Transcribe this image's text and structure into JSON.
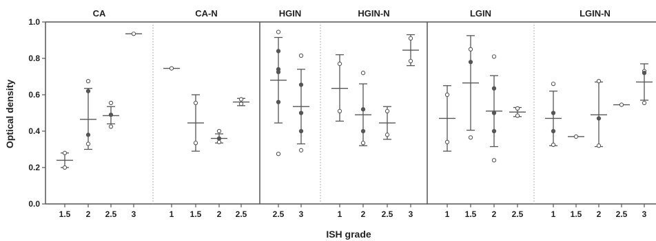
{
  "chart_data": {
    "type": "scatter",
    "xlabel": "ISH grade",
    "ylabel": "Optical density",
    "ylim": [
      0,
      1.0
    ],
    "yticks": [
      "0.0",
      "0.2",
      "0.4",
      "0.6",
      "0.8",
      "1.0"
    ],
    "grid": false,
    "colors": {
      "marker": "#555555",
      "hollow_marker": "#ffffff",
      "axis": "#555555",
      "errorbar": "#555555",
      "divider": "#999999"
    },
    "panels": [
      {
        "title": "CA",
        "groups": [
          {
            "x": "1.5",
            "mean": 0.24,
            "upper": 0.28,
            "lower": 0.2,
            "points": [
              0.28,
              0.2
            ]
          },
          {
            "x": "2",
            "mean": 0.465,
            "upper": 0.635,
            "lower": 0.3,
            "points": [
              0.675,
              0.62,
              0.38,
              0.33
            ]
          },
          {
            "x": "2.5",
            "mean": 0.485,
            "upper": 0.535,
            "lower": 0.44,
            "points": [
              0.555,
              0.49,
              0.425
            ]
          },
          {
            "x": "3",
            "mean": 0.935,
            "upper": 0.935,
            "lower": 0.935,
            "points": [
              0.935
            ]
          }
        ]
      },
      {
        "title": "CA-N",
        "groups": [
          {
            "x": "1",
            "mean": 0.745,
            "upper": 0.745,
            "lower": 0.745,
            "points": [
              0.745
            ]
          },
          {
            "x": "1.5",
            "mean": 0.445,
            "upper": 0.6,
            "lower": 0.29,
            "points": [
              0.555,
              0.335
            ]
          },
          {
            "x": "2",
            "mean": 0.36,
            "upper": 0.385,
            "lower": 0.335,
            "points": [
              0.4,
              0.36,
              0.34
            ]
          },
          {
            "x": "2.5",
            "mean": 0.56,
            "upper": 0.58,
            "lower": 0.54,
            "points": [
              0.575,
              0.55
            ]
          }
        ]
      },
      {
        "title": "HGIN",
        "groups": [
          {
            "x": "2.5",
            "mean": 0.68,
            "upper": 0.915,
            "lower": 0.445,
            "points": [
              0.945,
              0.84,
              0.74,
              0.725,
              0.56,
              0.275
            ]
          },
          {
            "x": "3",
            "mean": 0.535,
            "upper": 0.74,
            "lower": 0.33,
            "points": [
              0.815,
              0.655,
              0.5,
              0.4,
              0.295
            ]
          }
        ]
      },
      {
        "title": "HGIN-N",
        "groups": [
          {
            "x": "1",
            "mean": 0.635,
            "upper": 0.82,
            "lower": 0.455,
            "points": [
              0.77,
              0.51
            ]
          },
          {
            "x": "2",
            "mean": 0.49,
            "upper": 0.66,
            "lower": 0.32,
            "points": [
              0.72,
              0.52,
              0.4,
              0.335
            ]
          },
          {
            "x": "2.5",
            "mean": 0.445,
            "upper": 0.535,
            "lower": 0.355,
            "points": [
              0.51,
              0.38
            ]
          },
          {
            "x": "3",
            "mean": 0.845,
            "upper": 0.93,
            "lower": 0.76,
            "points": [
              0.91,
              0.785
            ]
          }
        ]
      },
      {
        "title": "LGIN",
        "groups": [
          {
            "x": "1",
            "mean": 0.47,
            "upper": 0.65,
            "lower": 0.29,
            "points": [
              0.6,
              0.34
            ]
          },
          {
            "x": "1.5",
            "mean": 0.665,
            "upper": 0.925,
            "lower": 0.405,
            "points": [
              0.85,
              0.78,
              0.365
            ]
          },
          {
            "x": "2",
            "mean": 0.51,
            "upper": 0.705,
            "lower": 0.315,
            "points": [
              0.81,
              0.635,
              0.5,
              0.4,
              0.24
            ]
          },
          {
            "x": "2.5",
            "mean": 0.505,
            "upper": 0.53,
            "lower": 0.48,
            "points": [
              0.525,
              0.485
            ]
          }
        ]
      },
      {
        "title": "LGIN-N",
        "groups": [
          {
            "x": "1",
            "mean": 0.47,
            "upper": 0.62,
            "lower": 0.32,
            "points": [
              0.66,
              0.5,
              0.4,
              0.325
            ]
          },
          {
            "x": "1.5",
            "mean": 0.37,
            "upper": 0.37,
            "lower": 0.37,
            "points": [
              0.37
            ]
          },
          {
            "x": "2",
            "mean": 0.49,
            "upper": 0.67,
            "lower": 0.315,
            "points": [
              0.675,
              0.47,
              0.32
            ]
          },
          {
            "x": "2.5",
            "mean": 0.545,
            "upper": 0.545,
            "lower": 0.545,
            "points": [
              0.545
            ]
          },
          {
            "x": "3",
            "mean": 0.67,
            "upper": 0.77,
            "lower": 0.57,
            "points": [
              0.73,
              0.72,
              0.555
            ]
          }
        ]
      }
    ]
  }
}
